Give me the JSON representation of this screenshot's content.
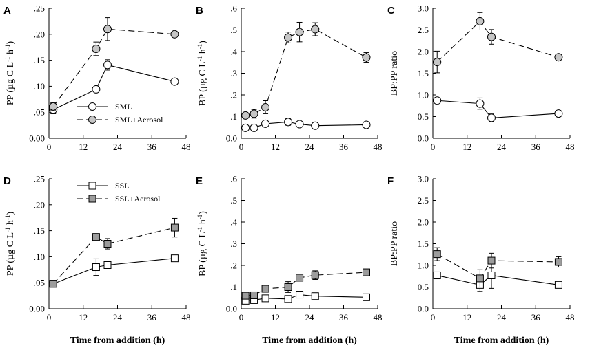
{
  "figure": {
    "x_axis_label": "Time from addition (h)"
  },
  "chart_data": [
    {
      "panel": "A",
      "type": "line",
      "ylabel_main": "PP (µg C L",
      "ylabel_mid": " h",
      "ylabel_end": ")",
      "ylabel_sup": "-1",
      "xlim": [
        0,
        48
      ],
      "xticks": [
        0,
        12,
        24,
        36,
        48
      ],
      "ylim": [
        0,
        0.25
      ],
      "yticks": [
        0,
        0.05,
        0.1,
        0.15,
        0.2,
        0.25
      ],
      "ytick_labels": [
        "0.00",
        ".05",
        ".10",
        ".15",
        ".20",
        ".25"
      ],
      "legend": {
        "position": "bottom-center",
        "entries": [
          "SML",
          "SML+Aerosol"
        ]
      },
      "series": [
        {
          "name": "SML",
          "marker": "circle",
          "fill": "#ffffff",
          "dash": "solid",
          "x": [
            1.5,
            16.5,
            20.5,
            44
          ],
          "y": [
            0.055,
            0.094,
            0.141,
            0.109
          ],
          "err": [
            0.008,
            0.004,
            0.01,
            0.004
          ]
        },
        {
          "name": "SML+Aerosol",
          "marker": "circle",
          "fill": "#c6c6c6",
          "dash": "dashed",
          "x": [
            1.5,
            16.5,
            20.5,
            44
          ],
          "y": [
            0.061,
            0.172,
            0.21,
            0.2
          ],
          "err": [
            0.007,
            0.013,
            0.022,
            0.003
          ]
        }
      ]
    },
    {
      "panel": "B",
      "type": "line",
      "ylabel_main": "BP (µg C L",
      "ylabel_mid": " h",
      "ylabel_end": ")",
      "ylabel_sup": "-1",
      "xlim": [
        0,
        48
      ],
      "xticks": [
        0,
        12,
        24,
        36,
        48
      ],
      "ylim": [
        0,
        0.6
      ],
      "yticks": [
        0,
        0.1,
        0.2,
        0.3,
        0.4,
        0.5,
        0.6
      ],
      "ytick_labels": [
        "0.0",
        ".1",
        ".2",
        ".3",
        ".4",
        ".5",
        ".6"
      ],
      "legend": null,
      "series": [
        {
          "name": "SML",
          "marker": "circle",
          "fill": "#ffffff",
          "dash": "solid",
          "x": [
            1.5,
            4.5,
            8.5,
            16.5,
            20.5,
            26,
            44
          ],
          "y": [
            0.048,
            0.048,
            0.067,
            0.075,
            0.065,
            0.058,
            0.062
          ],
          "err": [
            0.004,
            0.004,
            0.01,
            0.015,
            0.004,
            0.004,
            0.004
          ]
        },
        {
          "name": "SML+Aerosol",
          "marker": "circle",
          "fill": "#c6c6c6",
          "dash": "dashed",
          "x": [
            1.5,
            4.5,
            8.5,
            16.5,
            20.5,
            26,
            44
          ],
          "y": [
            0.105,
            0.113,
            0.143,
            0.465,
            0.49,
            0.503,
            0.373
          ],
          "err": [
            0.012,
            0.02,
            0.03,
            0.025,
            0.045,
            0.03,
            0.022
          ]
        }
      ]
    },
    {
      "panel": "C",
      "type": "line",
      "ylabel_main": "BP:PP ratio",
      "xlim": [
        0,
        48
      ],
      "xticks": [
        0,
        12,
        24,
        36,
        48
      ],
      "ylim": [
        0,
        3.0
      ],
      "yticks": [
        0,
        0.5,
        1.0,
        1.5,
        2.0,
        2.5,
        3.0
      ],
      "ytick_labels": [
        "0.0",
        "0.5",
        "1.0",
        "1.5",
        "2.0",
        "2.5",
        "3.0"
      ],
      "legend": null,
      "series": [
        {
          "name": "SML",
          "marker": "circle",
          "fill": "#ffffff",
          "dash": "solid",
          "x": [
            1.5,
            16.5,
            20.5,
            44
          ],
          "y": [
            0.87,
            0.8,
            0.47,
            0.57
          ],
          "err": [
            0.04,
            0.13,
            0.09,
            0.04
          ]
        },
        {
          "name": "SML+Aerosol",
          "marker": "circle",
          "fill": "#c6c6c6",
          "dash": "dashed",
          "x": [
            1.5,
            16.5,
            20.5,
            44
          ],
          "y": [
            1.76,
            2.7,
            2.34,
            1.87
          ],
          "err": [
            0.25,
            0.2,
            0.17,
            0.05
          ]
        }
      ]
    },
    {
      "panel": "D",
      "type": "line",
      "ylabel_main": "PP (µg C L",
      "ylabel_mid": " h",
      "ylabel_end": ")",
      "ylabel_sup": "-1",
      "xlim": [
        0,
        48
      ],
      "xticks": [
        0,
        12,
        24,
        36,
        48
      ],
      "ylim": [
        0,
        0.25
      ],
      "yticks": [
        0,
        0.05,
        0.1,
        0.15,
        0.2,
        0.25
      ],
      "ytick_labels": [
        "0.00",
        ".05",
        ".10",
        ".15",
        ".20",
        ".25"
      ],
      "legend": {
        "position": "top-left",
        "entries": [
          "SSL",
          "SSL+Aerosol"
        ]
      },
      "series": [
        {
          "name": "SSL",
          "marker": "square",
          "fill": "#ffffff",
          "dash": "solid",
          "x": [
            1.5,
            16.5,
            20.5,
            44
          ],
          "y": [
            0.048,
            0.08,
            0.084,
            0.097
          ],
          "err": [
            0.003,
            0.016,
            0.004,
            0.003
          ]
        },
        {
          "name": "SSL+Aerosol",
          "marker": "square",
          "fill": "#9c9c9c",
          "dash": "dashed",
          "x": [
            1.5,
            16.5,
            20.5,
            44
          ],
          "y": [
            0.048,
            0.138,
            0.125,
            0.156
          ],
          "err": [
            0.003,
            0.004,
            0.01,
            0.018
          ]
        }
      ]
    },
    {
      "panel": "E",
      "type": "line",
      "ylabel_main": "BP (µg C L",
      "ylabel_mid": " h",
      "ylabel_end": ")",
      "ylabel_sup": "-1",
      "xlim": [
        0,
        48
      ],
      "xticks": [
        0,
        12,
        24,
        36,
        48
      ],
      "ylim": [
        0,
        0.6
      ],
      "yticks": [
        0,
        0.1,
        0.2,
        0.3,
        0.4,
        0.5,
        0.6
      ],
      "ytick_labels": [
        "0.0",
        ".1",
        ".2",
        ".3",
        ".4",
        ".5",
        ".6"
      ],
      "legend": null,
      "series": [
        {
          "name": "SSL",
          "marker": "square",
          "fill": "#ffffff",
          "dash": "solid",
          "x": [
            1.5,
            4.5,
            8.5,
            16.5,
            20.5,
            26,
            44
          ],
          "y": [
            0.037,
            0.04,
            0.048,
            0.045,
            0.065,
            0.058,
            0.053
          ],
          "err": [
            0.004,
            0.004,
            0.004,
            0.004,
            0.006,
            0.004,
            0.004
          ]
        },
        {
          "name": "SSL+Aerosol",
          "marker": "square",
          "fill": "#9c9c9c",
          "dash": "dashed",
          "x": [
            1.5,
            4.5,
            8.5,
            16.5,
            20.5,
            26,
            44
          ],
          "y": [
            0.06,
            0.062,
            0.092,
            0.1,
            0.143,
            0.155,
            0.168
          ],
          "err": [
            0.006,
            0.008,
            0.012,
            0.025,
            0.01,
            0.02,
            0.015
          ]
        }
      ]
    },
    {
      "panel": "F",
      "type": "line",
      "ylabel_main": "BP:PP ratio",
      "xlim": [
        0,
        48
      ],
      "xticks": [
        0,
        12,
        24,
        36,
        48
      ],
      "ylim": [
        0,
        3.0
      ],
      "yticks": [
        0,
        0.5,
        1.0,
        1.5,
        2.0,
        2.5,
        3.0
      ],
      "ytick_labels": [
        "0.0",
        "0.5",
        "1.0",
        "1.5",
        "2.0",
        "2.5",
        "3.0"
      ],
      "legend": null,
      "series": [
        {
          "name": "SSL",
          "marker": "square",
          "fill": "#ffffff",
          "dash": "solid",
          "x": [
            1.5,
            16.5,
            20.5,
            44
          ],
          "y": [
            0.77,
            0.55,
            0.77,
            0.55
          ],
          "err": [
            0.08,
            0.15,
            0.3,
            0.05
          ]
        },
        {
          "name": "SSL+Aerosol",
          "marker": "square",
          "fill": "#9c9c9c",
          "dash": "dashed",
          "x": [
            1.5,
            16.5,
            20.5,
            44
          ],
          "y": [
            1.26,
            0.7,
            1.11,
            1.08
          ],
          "err": [
            0.15,
            0.2,
            0.17,
            0.12
          ]
        }
      ]
    }
  ]
}
